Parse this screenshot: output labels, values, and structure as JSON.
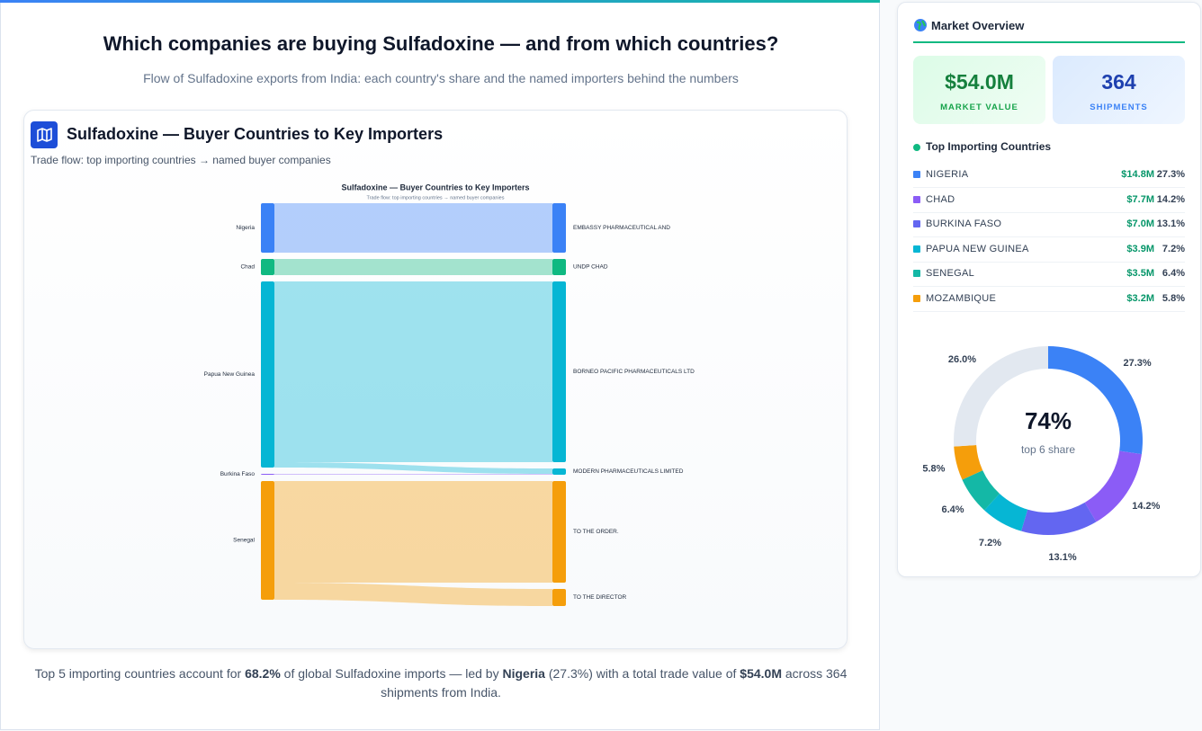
{
  "header": {
    "title": "Which companies are buying Sulfadoxine — and from which countries?",
    "subtitle": "Flow of Sulfadoxine exports from India: each country's share and the named importers behind the numbers"
  },
  "chart_data": [
    {
      "type": "sankey",
      "title": "Sulfadoxine — Buyer Countries to Key Importers",
      "subtitle": "Trade flow: top importing countries → named buyer companies",
      "sources": [
        {
          "name": "Nigeria",
          "color": "#3b82f6"
        },
        {
          "name": "Chad",
          "color": "#10b981"
        },
        {
          "name": "Papua New Guinea",
          "color": "#06b6d4"
        },
        {
          "name": "Burkina Faso",
          "color": "#8b5cf6"
        },
        {
          "name": "Senegal",
          "color": "#f59e0b"
        }
      ],
      "targets": [
        {
          "name": "EMBASSY PHARMACEUTICAL AND"
        },
        {
          "name": "UNDP CHAD"
        },
        {
          "name": "BORNEO PACIFIC PHARMACEUTICALS LTD"
        },
        {
          "name": "MODERN PHARMACEUTICALS LIMITED"
        },
        {
          "name": "TO THE ORDER."
        },
        {
          "name": "TO THE DIRECTOR"
        }
      ],
      "links": [
        {
          "source": 0,
          "target": 0,
          "value": 55
        },
        {
          "source": 1,
          "target": 1,
          "value": 18
        },
        {
          "source": 2,
          "target": 2,
          "value": 201
        },
        {
          "source": 2,
          "target": 3,
          "value": 6
        },
        {
          "source": 3,
          "target": 3,
          "value": 1
        },
        {
          "source": 4,
          "target": 4,
          "value": 113
        },
        {
          "source": 4,
          "target": 5,
          "value": 19
        }
      ]
    },
    {
      "type": "pie",
      "donut": true,
      "categories": [
        "NIGERIA",
        "CHAD",
        "BURKINA FASO",
        "PAPUA NEW GUINEA",
        "SENEGAL",
        "MOZAMBIQUE",
        null
      ],
      "values": [
        27.3,
        14.2,
        13.1,
        7.2,
        6.4,
        5.8,
        26.0
      ],
      "value_labels": [
        "27.3%",
        "14.2%",
        "13.1%",
        "7.2%",
        "6.4%",
        "5.8%",
        "26.0%"
      ],
      "colors": [
        "#3b82f6",
        "#8b5cf6",
        "#6366f1",
        "#06b6d4",
        "#14b8a6",
        "#f59e0b",
        "#e2e8f0"
      ],
      "center_label": "74%",
      "center_sublabel": "top 6 share"
    }
  ],
  "sidebar": {
    "title": "Market Overview",
    "kpis": [
      {
        "value": "$54.0M",
        "label": "MARKET VALUE"
      },
      {
        "value": "364",
        "label": "SHIPMENTS"
      }
    ],
    "list_title": "Top Importing Countries",
    "trade_values": [
      "$14.8M",
      "$7.7M",
      "$7.0M",
      "$3.9M",
      "$3.5M",
      "$3.2M"
    ]
  },
  "footer": {
    "parts": [
      "Top 5 importing countries account for ",
      "68.2%",
      " of global Sulfadoxine imports — led by ",
      "Nigeria",
      " (27.3%) with a total trade value of ",
      "$54.0M",
      " across 364 shipments from India."
    ]
  }
}
